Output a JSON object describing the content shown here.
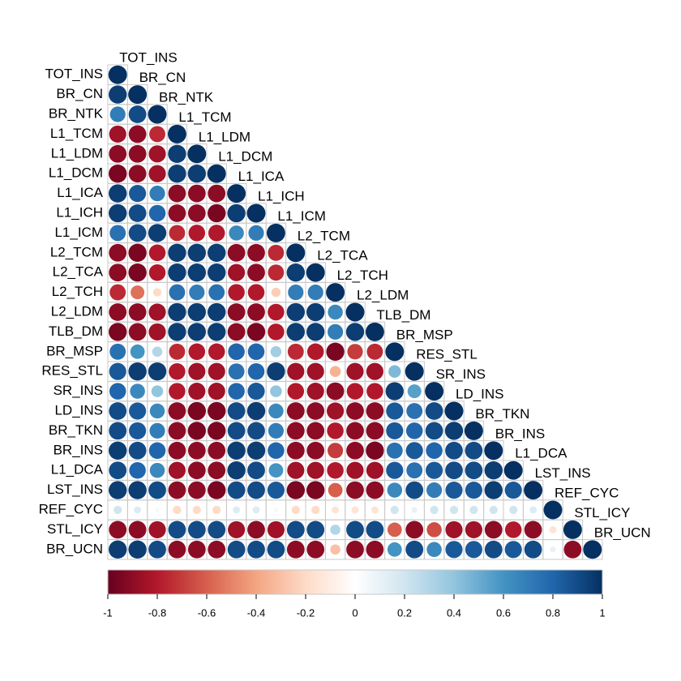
{
  "chart_data": {
    "type": "correlation",
    "variables": [
      "TOT_INS",
      "BR_CN",
      "BR_NTK",
      "L1_TCM",
      "L1_LDM",
      "L1_DCM",
      "L1_ICA",
      "L1_ICH",
      "L1_ICM",
      "L2_TCM",
      "L2_TCA",
      "L2_TCH",
      "L2_LDM",
      "TLB_DM",
      "BR_MSP",
      "RES_STL",
      "SR_INS",
      "LD_INS",
      "BR_TKN",
      "BR_INS",
      "L1_DCA",
      "LST_INS",
      "REF_CYC",
      "STL_ICY",
      "BR_UCN"
    ],
    "matrix": [
      [
        1
      ],
      [
        0.95,
        1
      ],
      [
        0.7,
        0.9,
        1
      ],
      [
        -0.85,
        -0.9,
        -0.75,
        1
      ],
      [
        -0.9,
        -0.9,
        -0.85,
        0.95,
        1
      ],
      [
        -0.95,
        -0.9,
        -0.85,
        0.95,
        0.95,
        1
      ],
      [
        0.95,
        0.85,
        0.7,
        -0.9,
        -0.9,
        -0.9,
        1
      ],
      [
        0.95,
        0.9,
        0.8,
        -0.9,
        -0.9,
        -0.95,
        0.95,
        1
      ],
      [
        0.75,
        0.9,
        0.95,
        -0.75,
        -0.8,
        -0.8,
        0.65,
        0.7,
        1
      ],
      [
        -0.9,
        -0.95,
        -0.8,
        0.95,
        0.95,
        0.95,
        -0.9,
        -0.9,
        -0.75,
        1
      ],
      [
        -0.9,
        -0.95,
        -0.8,
        0.95,
        0.95,
        0.95,
        -0.85,
        -0.9,
        -0.75,
        0.95,
        1
      ],
      [
        -0.75,
        -0.55,
        -0.2,
        0.75,
        0.7,
        0.75,
        -0.8,
        -0.8,
        -0.25,
        0.7,
        0.7,
        1
      ],
      [
        -0.9,
        -0.9,
        -0.85,
        0.95,
        0.95,
        0.95,
        -0.9,
        -0.9,
        -0.8,
        0.95,
        0.95,
        0.65,
        1
      ],
      [
        -0.95,
        -0.9,
        -0.85,
        0.95,
        0.95,
        0.95,
        -0.9,
        -0.95,
        -0.8,
        0.95,
        0.95,
        0.7,
        0.95,
        1
      ],
      [
        0.75,
        0.6,
        0.3,
        -0.75,
        -0.8,
        -0.8,
        0.8,
        0.8,
        0.35,
        -0.75,
        -0.8,
        -0.95,
        -0.7,
        -0.75,
        1
      ],
      [
        0.85,
        0.95,
        0.95,
        -0.8,
        -0.85,
        -0.85,
        0.75,
        0.8,
        0.95,
        -0.85,
        -0.85,
        -0.35,
        -0.85,
        -0.85,
        0.45,
        1
      ],
      [
        0.8,
        0.65,
        0.4,
        -0.8,
        -0.85,
        -0.85,
        0.8,
        0.85,
        0.4,
        -0.8,
        -0.85,
        -0.9,
        -0.8,
        -0.8,
        0.95,
        0.55,
        1
      ],
      [
        0.9,
        0.85,
        0.65,
        -0.9,
        -0.95,
        -0.95,
        0.9,
        0.95,
        0.65,
        -0.9,
        -0.9,
        -0.85,
        -0.9,
        -0.9,
        0.85,
        0.75,
        0.9,
        1
      ],
      [
        0.9,
        0.85,
        0.7,
        -0.9,
        -0.95,
        -0.95,
        0.9,
        0.9,
        0.7,
        -0.9,
        -0.9,
        -0.8,
        -0.9,
        -0.9,
        0.85,
        0.8,
        0.9,
        0.95,
        1
      ],
      [
        0.95,
        0.9,
        0.8,
        -0.9,
        -0.9,
        -0.9,
        0.95,
        0.95,
        0.8,
        -0.9,
        -0.9,
        -0.7,
        -0.9,
        -0.95,
        0.75,
        0.85,
        0.8,
        0.9,
        0.9,
        1
      ],
      [
        0.9,
        0.8,
        0.65,
        -0.85,
        -0.9,
        -0.9,
        0.95,
        0.9,
        0.6,
        -0.85,
        -0.85,
        -0.8,
        -0.85,
        -0.85,
        0.85,
        0.75,
        0.85,
        0.9,
        0.9,
        0.95,
        1
      ],
      [
        0.95,
        0.95,
        0.9,
        -0.9,
        -0.9,
        -0.95,
        0.9,
        0.9,
        0.85,
        -0.95,
        -0.95,
        -0.6,
        -0.9,
        -0.9,
        0.65,
        0.9,
        0.7,
        0.85,
        0.85,
        0.95,
        0.85,
        1
      ],
      [
        0.2,
        0.15,
        0.05,
        -0.2,
        -0.2,
        -0.2,
        0.15,
        0.15,
        0.05,
        -0.2,
        -0.2,
        -0.15,
        -0.15,
        -0.15,
        0.2,
        0.1,
        0.2,
        0.2,
        0.2,
        0.2,
        0.2,
        0.15,
        1
      ],
      [
        -0.9,
        -0.9,
        -0.85,
        0.9,
        0.9,
        0.9,
        -0.85,
        -0.9,
        -0.85,
        0.9,
        0.9,
        0.3,
        0.9,
        0.9,
        -0.6,
        -0.9,
        -0.65,
        -0.85,
        -0.85,
        -0.9,
        -0.8,
        -0.9,
        -0.15,
        1
      ],
      [
        0.95,
        0.95,
        0.9,
        -0.9,
        -0.9,
        -0.9,
        0.9,
        0.9,
        0.9,
        -0.9,
        -0.9,
        -0.3,
        -0.9,
        -0.9,
        0.6,
        0.9,
        0.65,
        0.85,
        0.85,
        0.9,
        0.85,
        0.9,
        0.1,
        -0.9,
        1
      ]
    ],
    "colormap": [
      "#67001F",
      "#B2182B",
      "#D6604D",
      "#F4A582",
      "#FDDBC7",
      "#FFFFFF",
      "#D1E5F0",
      "#92C5DE",
      "#4393C3",
      "#2166AC",
      "#053061"
    ],
    "colorbar": {
      "lim": [
        -1,
        1
      ],
      "ticks": [
        -1,
        -0.8,
        -0.6,
        -0.4,
        -0.2,
        0,
        0.2,
        0.4,
        0.6,
        0.8,
        1
      ]
    }
  }
}
